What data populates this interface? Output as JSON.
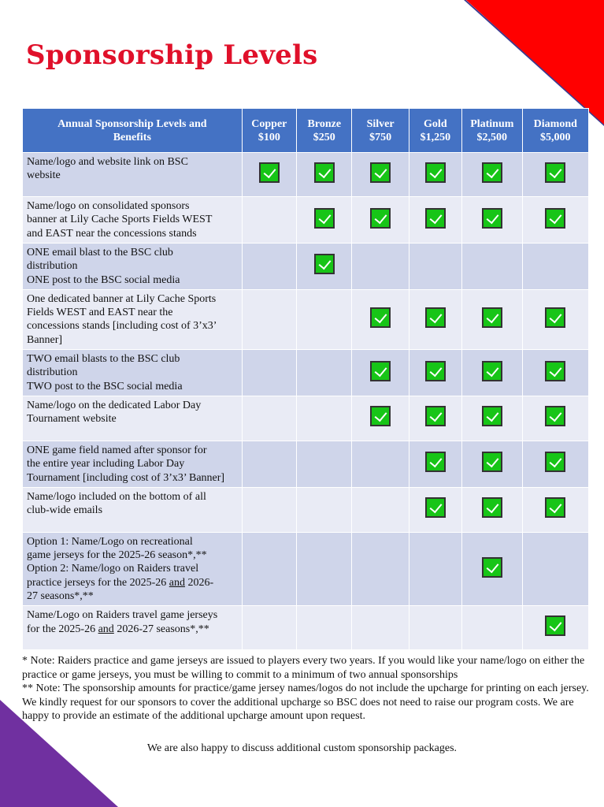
{
  "title": "Sponsorship Levels",
  "colors": {
    "title": "#e0102a",
    "header_bg": "#4472c4",
    "row_dark": "#cfd5ea",
    "row_light": "#e9ebf5",
    "check": "#17c517",
    "corner_red": "#ff0000",
    "corner_purple": "#7030a0"
  },
  "table": {
    "header": {
      "benefit": [
        "Annual Sponsorship Levels and",
        "Benefits"
      ],
      "levels": [
        {
          "name": "Copper",
          "price": "$100"
        },
        {
          "name": "Bronze",
          "price": "$250"
        },
        {
          "name": "Silver",
          "price": "$750"
        },
        {
          "name": "Gold",
          "price": "$1,250"
        },
        {
          "name": "Platinum",
          "price": "$2,500"
        },
        {
          "name": "Diamond",
          "price": "$5,000"
        }
      ]
    },
    "rows": [
      {
        "lines": [
          "Name/logo and website link on BSC",
          "website"
        ],
        "checks": [
          true,
          true,
          true,
          true,
          true,
          true
        ]
      },
      {
        "lines": [
          "Name/logo on consolidated sponsors",
          "banner at Lily Cache Sports Fields WEST",
          "and EAST near the concessions stands"
        ],
        "checks": [
          false,
          true,
          true,
          true,
          true,
          true
        ]
      },
      {
        "lines": [
          "ONE email blast to the BSC club",
          "distribution",
          "ONE post to the BSC social media"
        ],
        "checks": [
          false,
          true,
          false,
          false,
          false,
          false
        ]
      },
      {
        "lines": [
          "One dedicated banner at Lily Cache Sports",
          "Fields WEST and EAST near the",
          "concessions stands [including cost of 3’x3’",
          "Banner]"
        ],
        "checks": [
          false,
          false,
          true,
          true,
          true,
          true
        ]
      },
      {
        "lines": [
          "TWO email blasts to the BSC club",
          "distribution",
          "TWO post to the BSC social media"
        ],
        "checks": [
          false,
          false,
          true,
          true,
          true,
          true
        ]
      },
      {
        "lines": [
          "Name/logo on the dedicated Labor Day",
          "Tournament website"
        ],
        "checks": [
          false,
          false,
          true,
          true,
          true,
          true
        ]
      },
      {
        "lines": [
          "ONE game field named after sponsor for",
          "the entire year including Labor Day",
          "Tournament [including cost of 3’x3’ Banner]"
        ],
        "checks": [
          false,
          false,
          false,
          true,
          true,
          true
        ]
      },
      {
        "lines": [
          "Name/logo included on the bottom of all",
          "club-wide emails"
        ],
        "checks": [
          false,
          false,
          false,
          true,
          true,
          true
        ]
      },
      {
        "lines": [
          "Option 1: Name/Logo on recreational",
          "game jerseys for the 2025-26 season*,**",
          "Option 2: Name/logo on Raiders travel",
          [
            {
              "text": "practice jerseys for the 2025-26 "
            },
            {
              "text": "and",
              "underline": true
            },
            {
              "text": " 2026-"
            }
          ],
          "27 seasons*,**"
        ],
        "checks": [
          false,
          false,
          false,
          false,
          true,
          false
        ]
      },
      {
        "lines": [
          "Name/Logo on Raiders travel game jerseys",
          [
            {
              "text": "for the 2025-26 "
            },
            {
              "text": "and",
              "underline": true
            },
            {
              "text": " 2026-27 seasons*,**"
            }
          ]
        ],
        "checks": [
          false,
          false,
          false,
          false,
          false,
          true
        ]
      }
    ]
  },
  "notes": [
    "* Note: Raiders practice and game jerseys are issued to players every two years. If you would like your name/logo on either the practice or game jerseys, you must be willing to commit to a minimum of two annual sponsorships",
    "** Note: The sponsorship amounts for practice/game jersey names/logos do not include the upcharge for printing on each jersey. We kindly request for our sponsors to cover the additional upcharge so BSC does not need to raise our program costs. We are happy to provide an estimate of the additional upcharge amount upon request."
  ],
  "closing": "We are also happy to discuss additional custom sponsorship packages."
}
